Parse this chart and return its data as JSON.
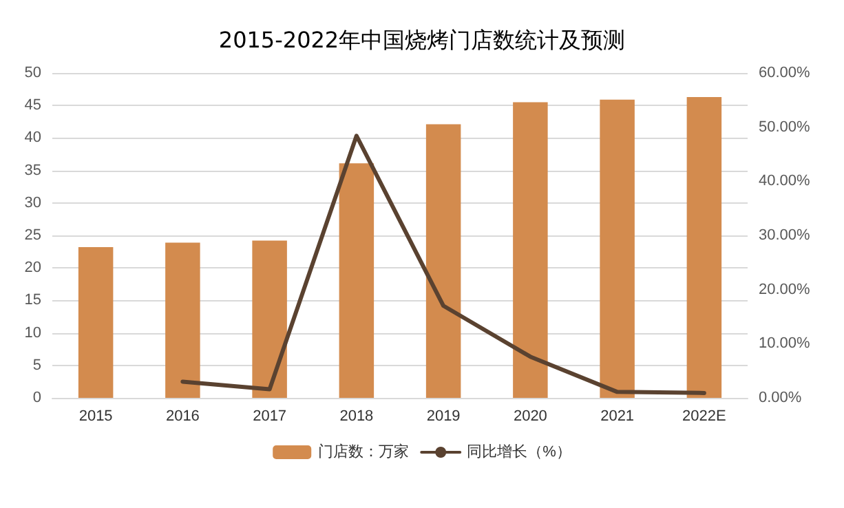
{
  "chart_data": {
    "type": "bar",
    "title": "2015-2022年中国烧烤门店数统计及预测",
    "categories": [
      "2015",
      "2016",
      "2017",
      "2018",
      "2019",
      "2020",
      "2021",
      "2022E"
    ],
    "series": [
      {
        "name": "门店数：万家",
        "color": "#d38b4e",
        "values": [
          23.2,
          23.9,
          24.2,
          36.1,
          42.1,
          45.5,
          45.9,
          46.3
        ]
      },
      {
        "name": "同比增长（%）",
        "type": "line",
        "axis": "y2",
        "color": "#5a4230",
        "marker": "none",
        "values": [
          null,
          3.0,
          1.6,
          48.4,
          17.0,
          7.6,
          1.1,
          0.9
        ]
      }
    ],
    "ylim": [
      0,
      50
    ],
    "yticks": [
      0,
      5,
      10,
      15,
      20,
      25,
      30,
      35,
      40,
      45,
      50
    ],
    "y2lim": [
      0,
      60
    ],
    "y2ticks": [
      {
        "value": 0,
        "label": "0.00%"
      },
      {
        "value": 10,
        "label": "10.00%"
      },
      {
        "value": 20,
        "label": "20.00%"
      },
      {
        "value": 30,
        "label": "30.00%"
      },
      {
        "value": 40,
        "label": "40.00%"
      },
      {
        "value": 50,
        "label": "50.00%"
      },
      {
        "value": 60,
        "label": "60.00%"
      }
    ],
    "grid": "y",
    "legend": "bottom"
  }
}
